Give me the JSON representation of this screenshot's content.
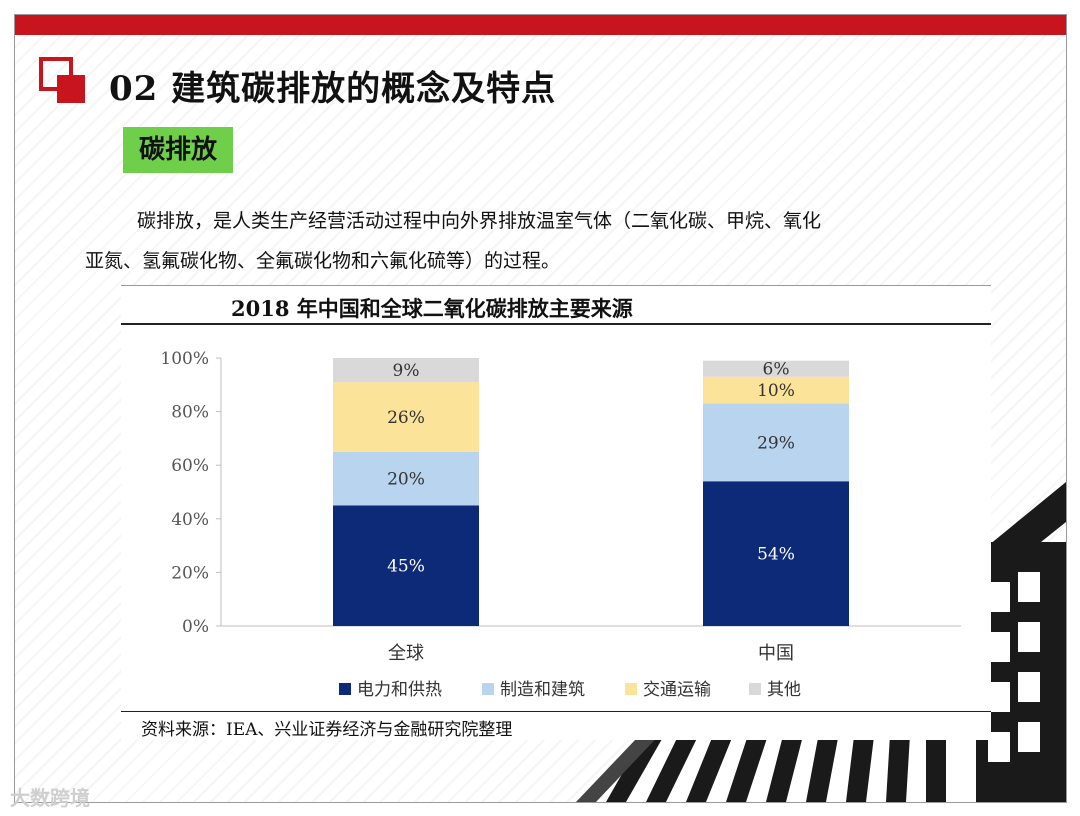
{
  "header": {
    "title": "02 建筑碳排放的概念及特点",
    "tag": "碳排放"
  },
  "body": {
    "paragraph_line1": "碳排放，是人类生产经营活动过程中向外界排放温室气体（二氧化碳、甲烷、氧化",
    "paragraph_line2": "亚氮、氢氟碳化物、全氟碳化物和六氟化硫等）的过程。"
  },
  "chart_data": {
    "type": "bar",
    "stacked": true,
    "title": "2018 年中国和全球二氧化碳排放主要来源",
    "categories": [
      "全球",
      "中国"
    ],
    "series": [
      {
        "name": "电力和供热",
        "values": [
          45,
          54
        ],
        "labels": [
          "45%",
          "54%"
        ],
        "color": "#0c2a78",
        "label_color": "#ffffff"
      },
      {
        "name": "制造和建筑",
        "values": [
          20,
          29
        ],
        "labels": [
          "20%",
          "29%"
        ],
        "color": "#b9d4ee",
        "label_color": "#333333"
      },
      {
        "name": "交通运输",
        "values": [
          26,
          10
        ],
        "labels": [
          "26%",
          "10%"
        ],
        "color": "#fbe39a",
        "label_color": "#333333"
      },
      {
        "name": "其他",
        "values": [
          9,
          6
        ],
        "labels": [
          "9%",
          "6%"
        ],
        "color": "#d9d9d9",
        "label_color": "#333333"
      }
    ],
    "ylim": [
      0,
      100
    ],
    "yticks": [
      "0%",
      "20%",
      "40%",
      "60%",
      "80%",
      "100%"
    ],
    "legend_position": "bottom",
    "grid": false
  },
  "source": "资料来源：IEA、兴业证券经济与金融研究院整理",
  "watermark": "大数跨境",
  "icons": {
    "title_mark": "red-square-logo-icon",
    "spade": "spade-icon"
  }
}
